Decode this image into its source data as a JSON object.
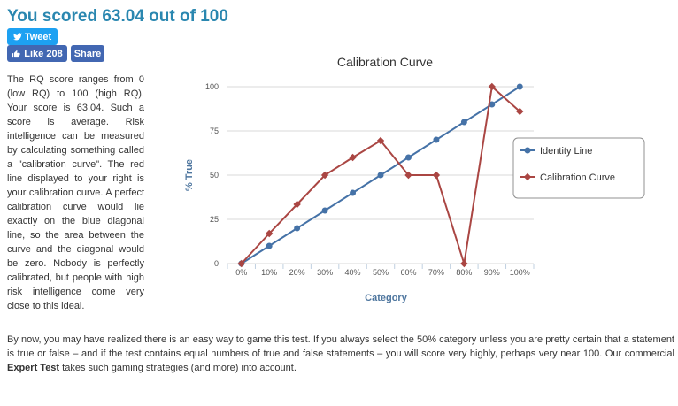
{
  "heading": "You scored 63.04 out of 100",
  "social": {
    "tweet_label": "Tweet",
    "like_label": "Like 208",
    "share_label": "Share",
    "colors": {
      "twitter": "#1da1f2",
      "facebook": "#4267b2"
    }
  },
  "para1": "The RQ score ranges from 0 (low RQ) to 100 (high RQ). Your score is 63.04. Such a score is average. Risk intelligence can be measured by calculating something called a \"calibration curve\". The red line displayed to your right is your calibration curve. A perfect calibration curve would lie exactly on the blue diagonal line, so the area between the curve and the diagonal would be zero. Nobody is perfectly calibrated, but people with high risk intelligence come very close to this ideal.",
  "para2": {
    "before": "By now, you may have realized there is an easy way to game this test. If you always select the 50% category unless you are pretty certain that a statement is true or false – and if the test contains equal numbers of true and false statements – you will score very highly, perhaps very near 100. Our commercial ",
    "bold": "Expert Test",
    "after": " takes such gaming strategies (and more) into account."
  },
  "chart_data": {
    "type": "line",
    "title": "Calibration Curve",
    "xlabel": "Category",
    "ylabel": "% True",
    "categories": [
      "0%",
      "10%",
      "20%",
      "30%",
      "40%",
      "50%",
      "60%",
      "70%",
      "80%",
      "90%",
      "100%"
    ],
    "ylim": [
      0,
      100
    ],
    "yticks": [
      0,
      25,
      50,
      75,
      100
    ],
    "grid": true,
    "legend_position": "right",
    "series": [
      {
        "name": "Identity Line",
        "color": "#4572a7",
        "marker": "circle",
        "values": [
          0,
          10,
          20,
          30,
          40,
          50,
          60,
          70,
          80,
          90,
          100
        ]
      },
      {
        "name": "Calibration Curve",
        "color": "#aa4643",
        "marker": "diamond",
        "values": [
          0,
          17,
          33.5,
          50,
          60,
          69.5,
          50,
          50,
          0,
          100,
          86
        ]
      }
    ]
  }
}
